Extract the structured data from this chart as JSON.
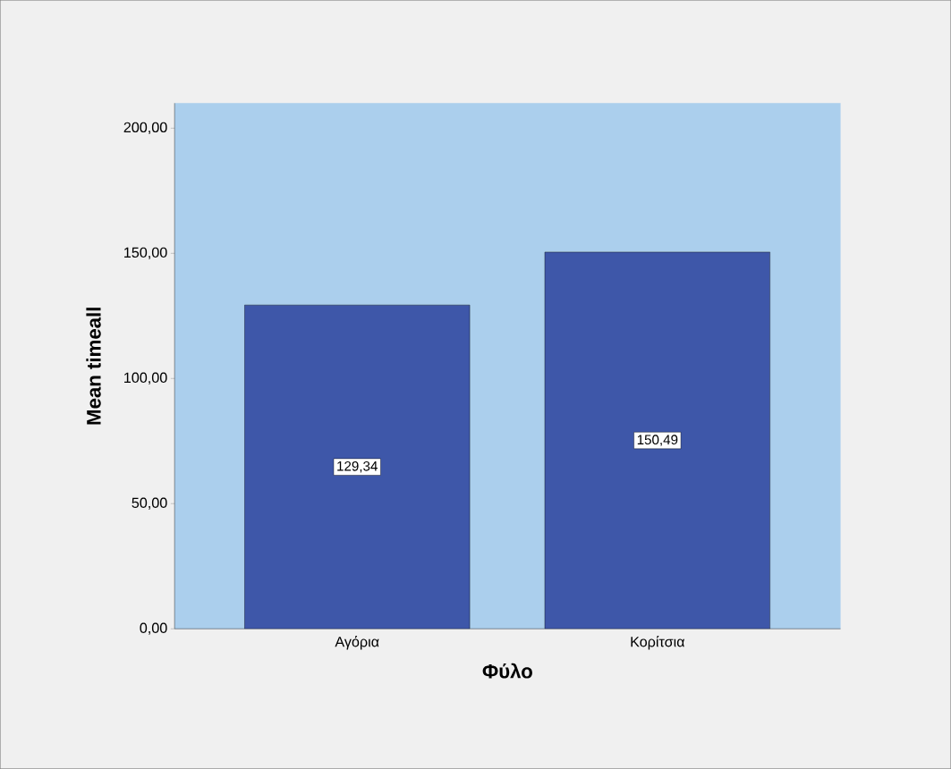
{
  "chart_data": {
    "type": "bar",
    "xlabel": "Φύλο",
    "ylabel": "Mean timeall",
    "categories": [
      "Αγόρια",
      "Κορίτσια"
    ],
    "values": [
      129.34,
      150.49
    ],
    "value_labels": [
      "129,34",
      "150,49"
    ],
    "color": "#3e57a9",
    "ylim": [
      0,
      210
    ],
    "yticks": [
      {
        "value": 0,
        "label": "0,00"
      },
      {
        "value": 50,
        "label": "50,00"
      },
      {
        "value": 100,
        "label": "100,00"
      },
      {
        "value": 150,
        "label": "150,00"
      },
      {
        "value": 200,
        "label": "200,00"
      }
    ],
    "grid": false
  }
}
